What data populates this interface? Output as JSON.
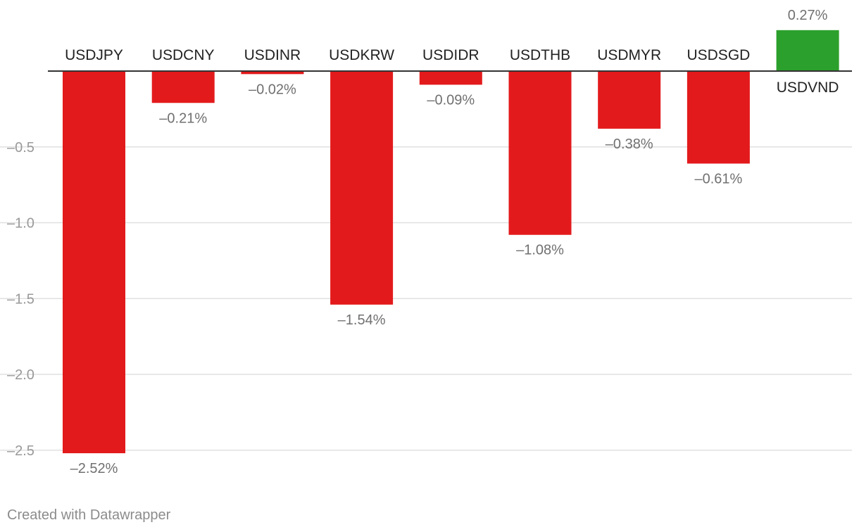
{
  "chart_data": {
    "type": "bar",
    "categories": [
      "USDJPY",
      "USDCNY",
      "USDINR",
      "USDKRW",
      "USDIDR",
      "USDTHB",
      "USDMYR",
      "USDSGD",
      "USDVND"
    ],
    "values": [
      -2.52,
      -0.21,
      -0.02,
      -1.54,
      -0.09,
      -1.08,
      -0.38,
      -0.61,
      0.27
    ],
    "value_labels": [
      "–2.52%",
      "–0.21%",
      "–0.02%",
      "–1.54%",
      "–0.09%",
      "–1.08%",
      "–0.38%",
      "–0.61%",
      "0.27%"
    ],
    "y_ticks": [
      -0.5,
      -1.0,
      -1.5,
      -2.0,
      -2.5
    ],
    "y_tick_labels": [
      "–0.5",
      "–1.0",
      "–1.5",
      "–2.0",
      "–2.5"
    ],
    "ylim": [
      -2.52,
      0.27
    ],
    "grid": true,
    "colors": {
      "negative": "#e31a1c",
      "positive": "#2ca02c",
      "grid": "#e0e0e0",
      "axis": "#333333",
      "value_label": "#707070",
      "tick_label": "#999999",
      "category_label": "#222222"
    }
  },
  "footer": {
    "credit": "Created with Datawrapper"
  }
}
